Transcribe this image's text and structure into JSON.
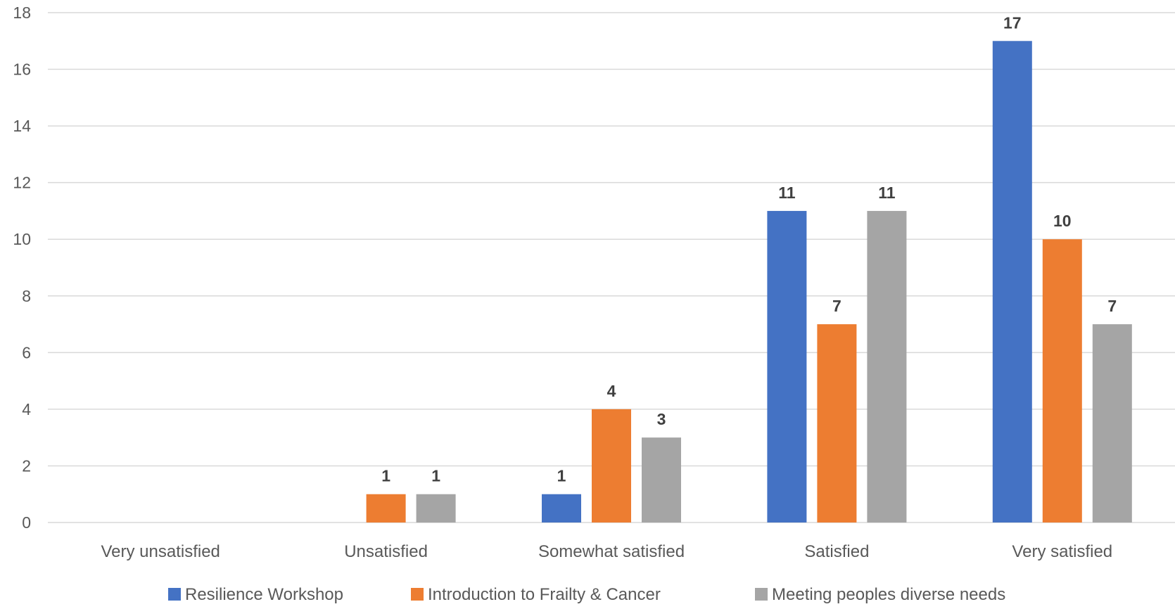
{
  "chart_data": {
    "type": "bar",
    "title": "",
    "xlabel": "",
    "ylabel": "",
    "ylim": [
      0,
      18
    ],
    "yticks": [
      0,
      2,
      4,
      6,
      8,
      10,
      12,
      14,
      16,
      18
    ],
    "grid": true,
    "legend_position": "bottom",
    "categories": [
      "Very unsatisfied",
      "Unsatisfied",
      "Somewhat satisfied",
      "Satisfied",
      "Very satisfied"
    ],
    "series": [
      {
        "name": "Resilience Workshop",
        "color": "#4472c4",
        "values": [
          0,
          0,
          1,
          11,
          17
        ]
      },
      {
        "name": "Introduction to Frailty & Cancer",
        "color": "#ed7d31",
        "values": [
          0,
          1,
          4,
          7,
          10
        ]
      },
      {
        "name": "Meeting peoples diverse needs",
        "color": "#a5a5a5",
        "values": [
          0,
          1,
          3,
          11,
          7
        ]
      }
    ]
  }
}
